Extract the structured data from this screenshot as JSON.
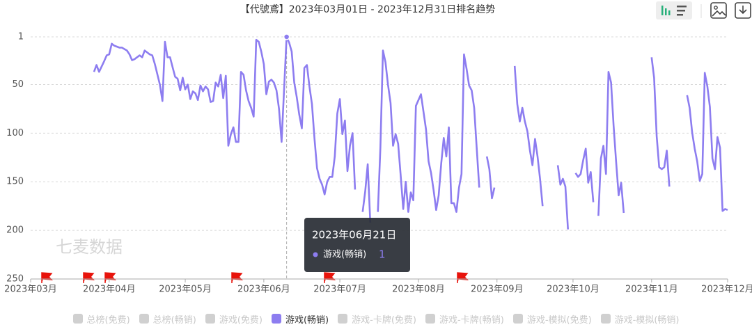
{
  "chart_data": {
    "type": "line",
    "title": "【代號鳶】2023年03月01日 - 2023年12月31日排名趋势",
    "watermark": "七麦数据",
    "color": "#8d7df0",
    "x": [
      25,
      26,
      27,
      29,
      30,
      31,
      32,
      33,
      35,
      36,
      38,
      39,
      40,
      41,
      43,
      44,
      45,
      46,
      47,
      48,
      49,
      51,
      52,
      53,
      54,
      55,
      56,
      57,
      58,
      59,
      60,
      61,
      62,
      63,
      64,
      65,
      66,
      67,
      68,
      69,
      70,
      71,
      72,
      73,
      74,
      75,
      76,
      77,
      78,
      79,
      80,
      81,
      82,
      83,
      84,
      85,
      86,
      87,
      88,
      89,
      90,
      91,
      92,
      93,
      94,
      95,
      96,
      97,
      98,
      99,
      101,
      102,
      103,
      104,
      105,
      106,
      107,
      108,
      109,
      110,
      111,
      112,
      113,
      114,
      115,
      116,
      117,
      118,
      119,
      120,
      121,
      122,
      123,
      124,
      125,
      126,
      127,
      128,
      null,
      131,
      132,
      133,
      134,
      null,
      137,
      138,
      139,
      140,
      141,
      142,
      143,
      144,
      145,
      146,
      147,
      148,
      149,
      150,
      151,
      152,
      154,
      155,
      156,
      157,
      158,
      159,
      160,
      161,
      162,
      163,
      164,
      165,
      166,
      167,
      168,
      169,
      170,
      171,
      172,
      173,
      174,
      175,
      176,
      177,
      null,
      180,
      181,
      182,
      183,
      null,
      191,
      192,
      193,
      194,
      195,
      196,
      197,
      198,
      199,
      200,
      201,
      202,
      null,
      208,
      209,
      210,
      211,
      212,
      null,
      215,
      216,
      217,
      218,
      219,
      220,
      221,
      222,
      null,
      224,
      225,
      226,
      227,
      228,
      229,
      230,
      231,
      232,
      233,
      234,
      null,
      245,
      246,
      247,
      248,
      249,
      250,
      251,
      252,
      null,
      259,
      260,
      261,
      262,
      263,
      264,
      265,
      266,
      267,
      268,
      269,
      270,
      271,
      272,
      273,
      274,
      275
    ],
    "values": [
      37,
      30,
      37,
      26,
      20,
      19,
      8,
      10,
      12,
      12,
      15,
      19,
      25,
      24,
      20,
      22,
      15,
      17,
      19,
      20,
      29,
      50,
      67,
      6,
      22,
      22,
      32,
      42,
      44,
      56,
      43,
      55,
      50,
      65,
      57,
      59,
      66,
      51,
      57,
      52,
      55,
      68,
      67,
      48,
      52,
      40,
      64,
      41,
      113,
      101,
      94,
      109,
      109,
      37,
      40,
      56,
      67,
      74,
      83,
      4,
      6,
      16,
      29,
      60,
      47,
      45,
      48,
      56,
      75,
      109,
      1,
      7,
      16,
      48,
      63,
      81,
      95,
      33,
      30,
      52,
      70,
      106,
      136,
      147,
      153,
      163,
      150,
      145,
      145,
      124,
      80,
      65,
      101,
      87,
      139,
      113,
      100,
      158,
      null,
      181,
      160,
      132,
      192,
      null,
      181,
      115,
      15,
      27,
      50,
      69,
      113,
      101,
      111,
      143,
      178,
      150,
      181,
      161,
      169,
      72,
      60,
      78,
      96,
      129,
      141,
      159,
      179,
      164,
      131,
      105,
      124,
      94,
      172,
      172,
      181,
      156,
      142,
      19,
      34,
      51,
      56,
      74,
      115,
      156,
      null,
      124,
      137,
      167,
      156,
      null,
      31,
      70,
      88,
      74,
      88,
      98,
      118,
      133,
      106,
      124,
      147,
      175,
      null,
      133,
      153,
      147,
      155,
      199,
      null,
      141,
      145,
      142,
      128,
      116,
      151,
      140,
      171,
      null,
      185,
      126,
      113,
      142,
      37,
      48,
      92,
      129,
      164,
      151,
      182,
      null,
      22,
      43,
      103,
      135,
      137,
      135,
      118,
      155,
      null,
      61,
      74,
      99,
      116,
      129,
      149,
      142,
      38,
      52,
      73,
      126,
      137,
      104,
      115,
      180,
      178,
      179
    ],
    "xlim": [
      0,
      275
    ],
    "xticks": [
      {
        "value": 0,
        "label": "2023年03月"
      },
      {
        "value": 31,
        "label": "2023年04月"
      },
      {
        "value": 61,
        "label": "2023年05月"
      },
      {
        "value": 92,
        "label": "2023年06月"
      },
      {
        "value": 122,
        "label": "2023年07月"
      },
      {
        "value": 153,
        "label": "2023年08月"
      },
      {
        "value": 184,
        "label": "2023年09月"
      },
      {
        "value": 214,
        "label": "2023年10月"
      },
      {
        "value": 245,
        "label": "2023年11月"
      },
      {
        "value": 275,
        "label": "2023年12月"
      }
    ],
    "ylim": [
      1,
      250
    ],
    "y_inverted": true,
    "yticks": [
      1,
      50,
      100,
      150,
      200,
      250
    ],
    "grid": true,
    "legend": {
      "items": [
        "总榜(免费)",
        "总榜(畅销)",
        "游戏(免费)",
        "游戏(畅销)",
        "游戏-卡牌(免费)",
        "游戏-卡牌(畅销)",
        "游戏-模拟(免费)",
        "游戏-模拟(畅销)"
      ],
      "active": 3
    },
    "tooltip": {
      "date": "2023年06月21日"
    }
  }
}
